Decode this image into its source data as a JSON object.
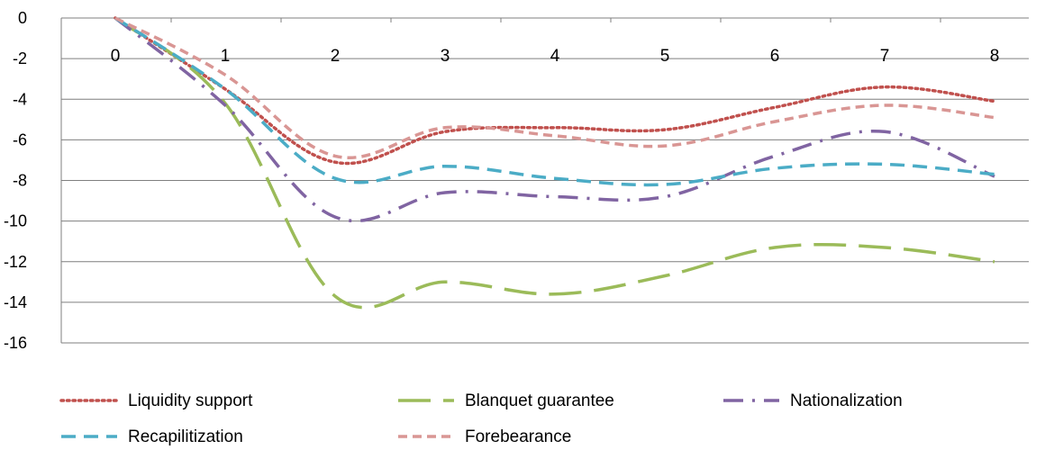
{
  "chart_data": {
    "type": "line",
    "title": "",
    "xlabel": "",
    "ylabel": "",
    "x": [
      0,
      1,
      2,
      3,
      4,
      5,
      6,
      7,
      8
    ],
    "x_tick_labels": [
      "0",
      "1",
      "2",
      "3",
      "4",
      "5",
      "6",
      "7",
      "8"
    ],
    "y_tick_labels": [
      "0",
      "-2",
      "-4",
      "-6",
      "-8",
      "-10",
      "-12",
      "-14",
      "-16"
    ],
    "ylim": [
      -16,
      0
    ],
    "grid": true,
    "legend_position": "bottom",
    "series": [
      {
        "name": "Liquidity support",
        "color": "#C0504D",
        "style": "dotted",
        "values": [
          0,
          -3.5,
          -7.1,
          -5.6,
          -5.4,
          -5.5,
          -4.4,
          -3.4,
          -4.1
        ]
      },
      {
        "name": "Blanquet guarantee",
        "color": "#9BBB59",
        "style": "long-dash",
        "values": [
          0,
          -4.2,
          -13.7,
          -13.0,
          -13.6,
          -12.7,
          -11.3,
          -11.3,
          -12.0
        ]
      },
      {
        "name": "Nationalization",
        "color": "#8064A2",
        "style": "dash-dot",
        "values": [
          0,
          -4.3,
          -9.8,
          -8.6,
          -8.8,
          -8.8,
          -6.8,
          -5.6,
          -7.8
        ]
      },
      {
        "name": "Recapilitization",
        "color": "#4BACC6",
        "style": "dash",
        "values": [
          0,
          -3.5,
          -7.9,
          -7.3,
          -7.9,
          -8.2,
          -7.4,
          -7.2,
          -7.7
        ]
      },
      {
        "name": "Forebearance",
        "color": "#D99694",
        "style": "short-dash",
        "values": [
          0,
          -2.8,
          -6.8,
          -5.4,
          -5.8,
          -6.3,
          -5.1,
          -4.3,
          -4.9
        ]
      }
    ]
  }
}
